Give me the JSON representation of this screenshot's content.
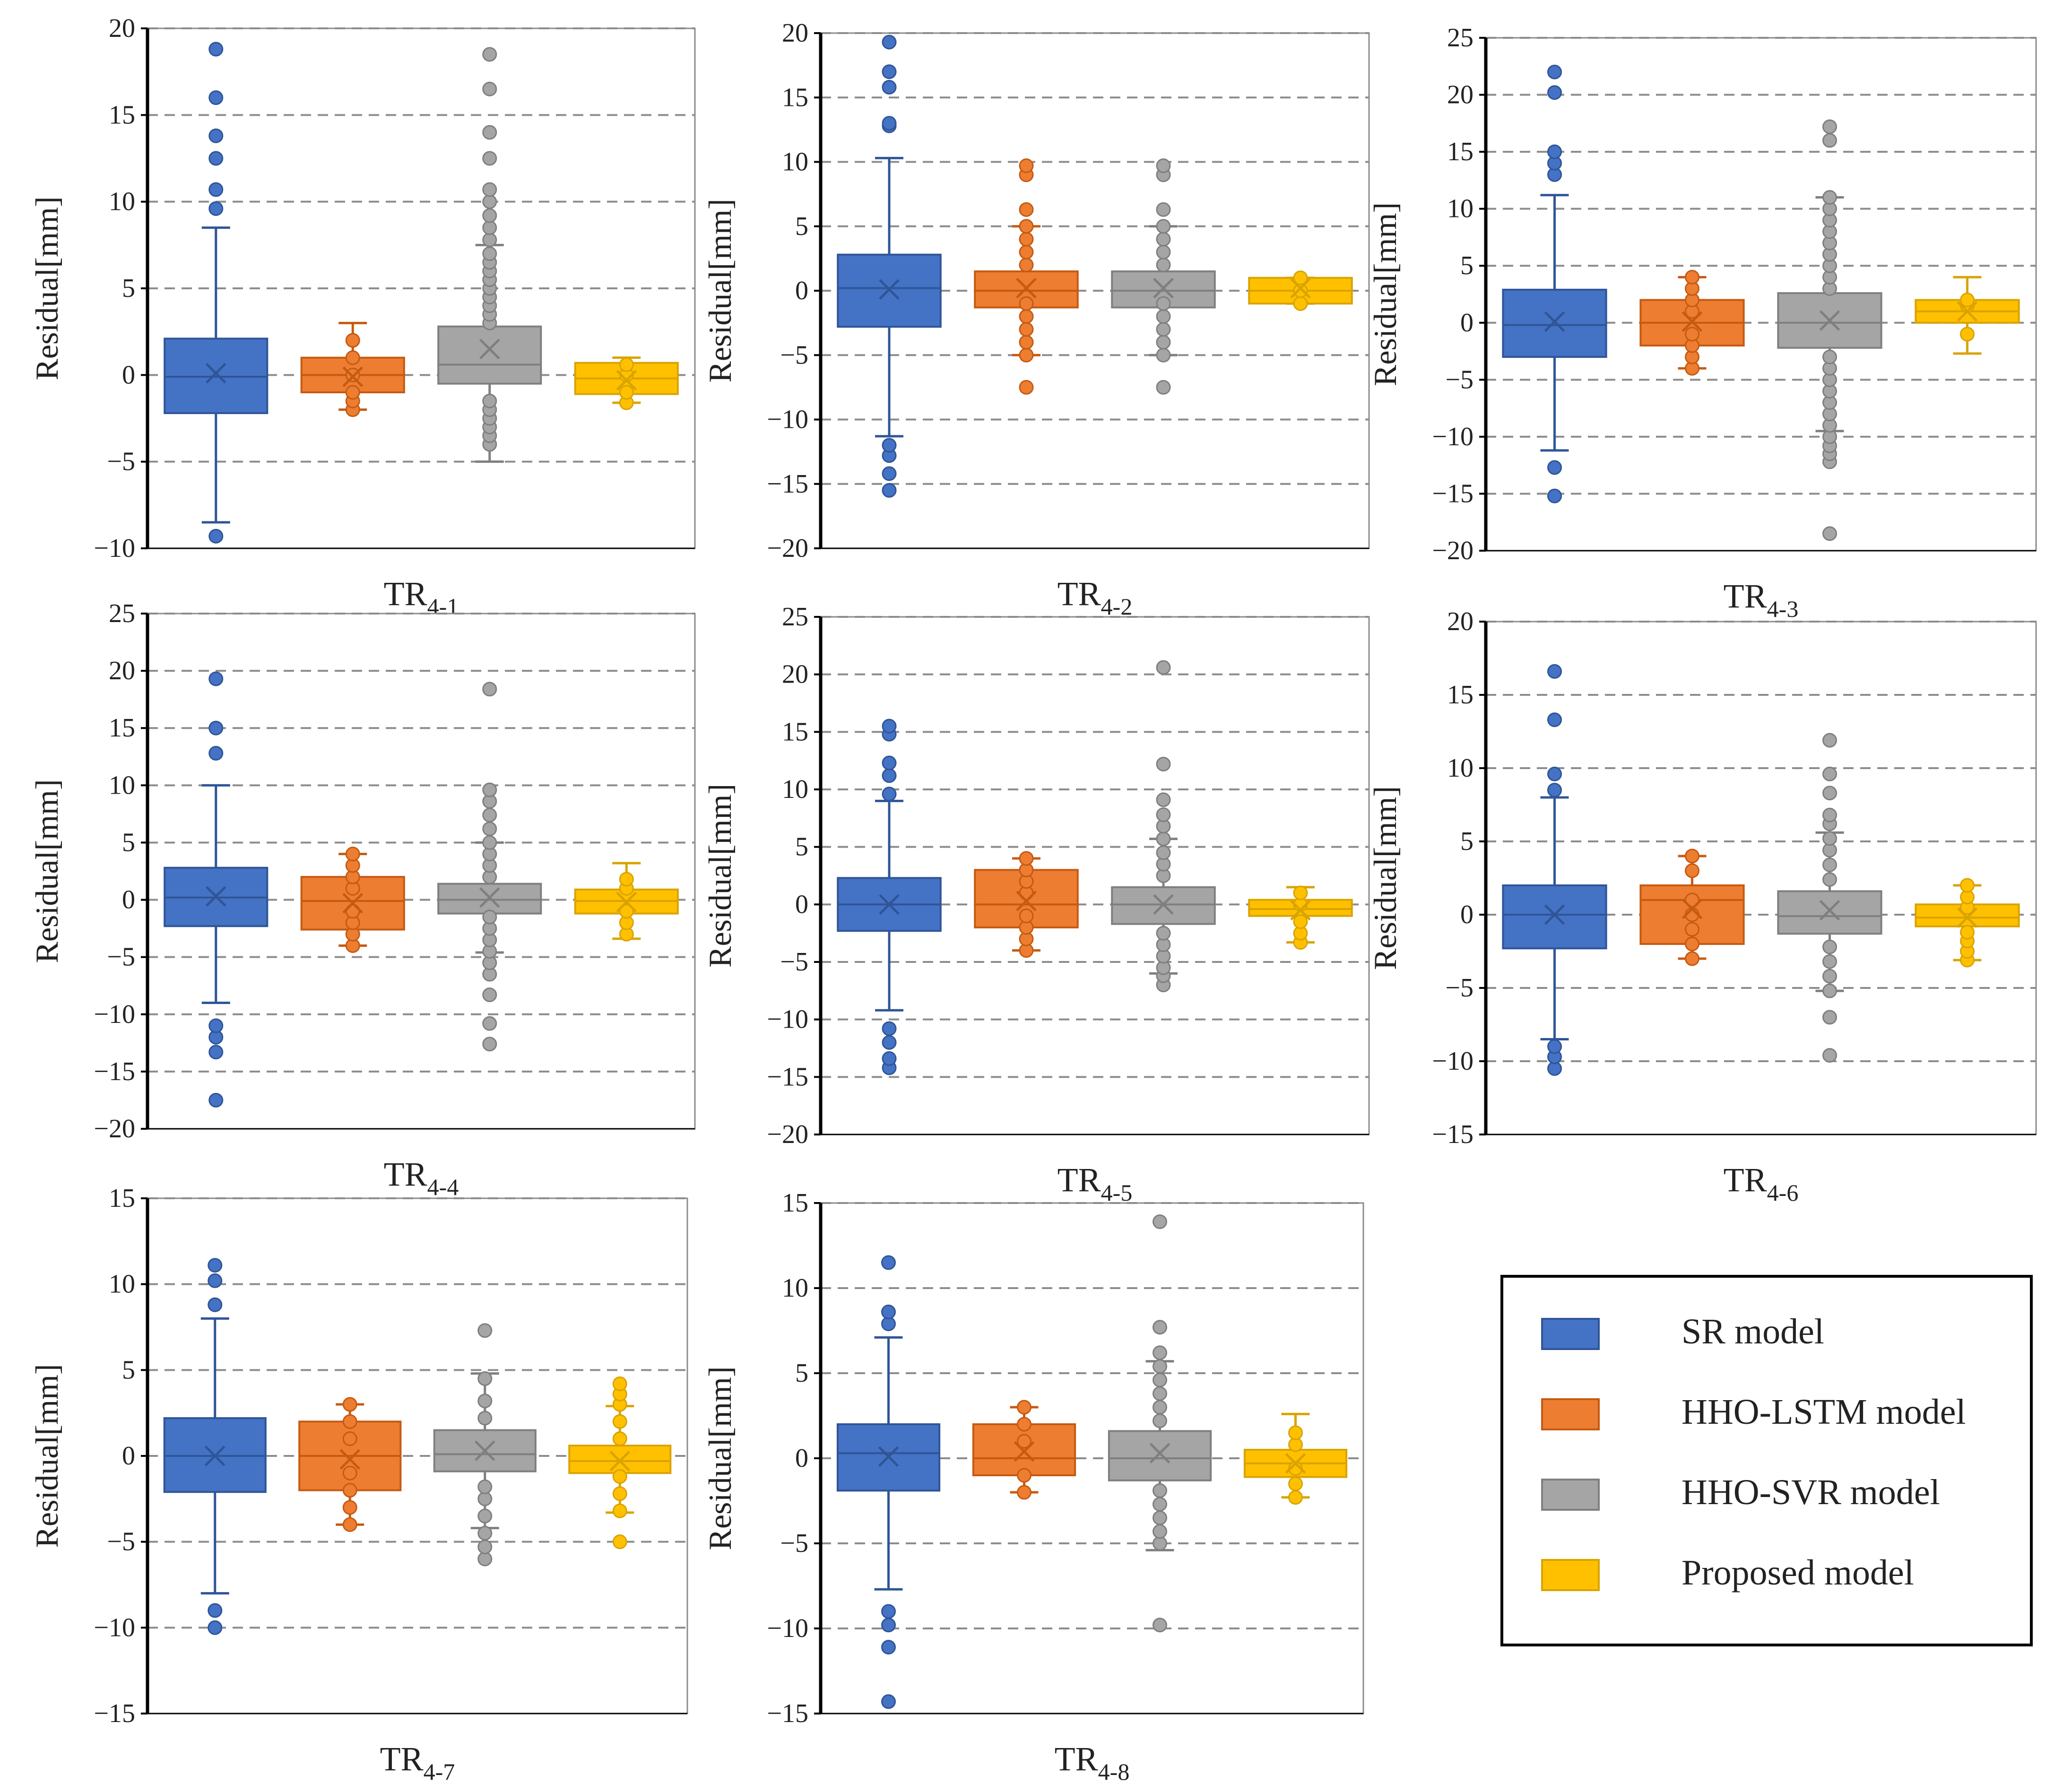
{
  "figure": {
    "series_names": [
      "SR model",
      "HHO-LSTM model",
      "HHO-SVR model",
      "Proposed model"
    ],
    "colors": {
      "SR model": {
        "fill": "#4472C4",
        "line": "#2F5597"
      },
      "HHO-LSTM model": {
        "fill": "#ED7D31",
        "line": "#C55A11"
      },
      "HHO-SVR model": {
        "fill": "#A5A5A5",
        "line": "#7F7F7F"
      },
      "Proposed model": {
        "fill": "#FFC000",
        "line": "#D9A300"
      }
    },
    "legend": {
      "items": [
        "SR model",
        "HHO-LSTM model",
        "HHO-SVR model",
        "Proposed model"
      ]
    }
  },
  "chart_data": [
    {
      "type": "box",
      "title_main": "TR",
      "title_sub": "4-1",
      "ylabel": "Residual[mm]",
      "ylim": [
        -10,
        20
      ],
      "yticks": [
        -10,
        -5,
        0,
        5,
        10,
        15,
        20
      ],
      "boxes": [
        {
          "series": "SR model",
          "q1": -2.2,
          "median": -0.1,
          "q3": 2.1,
          "mean": 0.1,
          "whisker_low": -8.5,
          "whisker_high": 8.5,
          "outliers": [
            -9.3,
            9.6,
            10.7,
            12.5,
            13.8,
            16.0,
            18.8
          ]
        },
        {
          "series": "HHO-LSTM model",
          "q1": -1.0,
          "median": 0.0,
          "q3": 1.0,
          "mean": -0.1,
          "whisker_low": -2.0,
          "whisker_high": 3.0,
          "outliers": [
            -2.0,
            -1.5,
            -1.0,
            0.0,
            1.0,
            2.0
          ]
        },
        {
          "series": "HHO-SVR model",
          "q1": -0.5,
          "median": 0.6,
          "q3": 2.8,
          "mean": 1.5,
          "whisker_low": -5.0,
          "whisker_high": 7.5,
          "outliers": [
            -4.0,
            -3.5,
            -3.0,
            -2.5,
            -2.0,
            -1.5,
            3.0,
            3.5,
            4.0,
            4.5,
            5.0,
            5.5,
            6.0,
            6.5,
            7.0,
            7.8,
            8.5,
            9.2,
            10.0,
            10.7,
            12.5,
            14.0,
            16.5,
            18.5
          ]
        },
        {
          "series": "Proposed model",
          "q1": -1.1,
          "median": -0.2,
          "q3": 0.7,
          "mean": -0.3,
          "whisker_low": -1.6,
          "whisker_high": 1.0,
          "outliers": [
            -1.6,
            -1.0,
            0.0,
            0.6
          ]
        }
      ]
    },
    {
      "type": "box",
      "title_main": "TR",
      "title_sub": "4-2",
      "ylabel": "Residual[mm]",
      "ylim": [
        -20,
        20
      ],
      "yticks": [
        -20,
        -15,
        -10,
        -5,
        0,
        5,
        10,
        15,
        20
      ],
      "boxes": [
        {
          "series": "SR model",
          "q1": -2.8,
          "median": 0.2,
          "q3": 2.8,
          "mean": 0.1,
          "whisker_low": -11.3,
          "whisker_high": 10.3,
          "outliers": [
            -15.5,
            -14.2,
            -12.8,
            -12.0,
            12.8,
            13.0,
            15.8,
            17.0,
            19.3
          ]
        },
        {
          "series": "HHO-LSTM model",
          "q1": -1.3,
          "median": 0.0,
          "q3": 1.5,
          "mean": 0.2,
          "whisker_low": -5.0,
          "whisker_high": 5.0,
          "outliers": [
            -7.5,
            -5.0,
            -4.0,
            -3.0,
            -2.0,
            -1.0,
            2.0,
            3.0,
            4.0,
            5.0,
            6.3,
            9.0,
            9.7
          ]
        },
        {
          "series": "HHO-SVR model",
          "q1": -1.3,
          "median": 0.0,
          "q3": 1.5,
          "mean": 0.2,
          "whisker_low": -5.0,
          "whisker_high": 5.0,
          "outliers": [
            -7.5,
            -5.0,
            -4.0,
            -3.0,
            -2.0,
            -1.0,
            2.0,
            3.0,
            4.0,
            5.0,
            6.3,
            9.0,
            9.7
          ]
        },
        {
          "series": "Proposed model",
          "q1": -1.0,
          "median": 0.0,
          "q3": 1.0,
          "mean": 0.2,
          "whisker_low": -1.0,
          "whisker_high": 1.0,
          "outliers": [
            -1.0,
            0.0,
            1.0
          ]
        }
      ]
    },
    {
      "type": "box",
      "title_main": "TR",
      "title_sub": "4-3",
      "ylabel": "Residual[mm]",
      "ylim": [
        -20,
        25
      ],
      "yticks": [
        -20,
        -15,
        -10,
        -5,
        0,
        5,
        10,
        15,
        20,
        25
      ],
      "boxes": [
        {
          "series": "SR model",
          "q1": -3.0,
          "median": -0.2,
          "q3": 2.9,
          "mean": 0.1,
          "whisker_low": -11.2,
          "whisker_high": 11.2,
          "outliers": [
            -15.2,
            -12.7,
            13.0,
            14.0,
            15.0,
            20.2,
            22.0
          ]
        },
        {
          "series": "HHO-LSTM model",
          "q1": -2.0,
          "median": 0.0,
          "q3": 2.0,
          "mean": 0.1,
          "whisker_low": -4.0,
          "whisker_high": 4.0,
          "outliers": [
            -4.0,
            -3.0,
            -2.0,
            -1.0,
            1.0,
            2.0,
            3.0,
            4.0
          ]
        },
        {
          "series": "HHO-SVR model",
          "q1": -2.2,
          "median": 0.0,
          "q3": 2.6,
          "mean": 0.2,
          "whisker_low": -9.5,
          "whisker_high": 11.0,
          "outliers": [
            -18.5,
            -12.2,
            -11.5,
            -10.8,
            -10.0,
            -9.0,
            -8.0,
            -7.0,
            -6.0,
            -5.0,
            -4.0,
            -3.0,
            3.0,
            4.0,
            5.0,
            6.0,
            7.0,
            8.0,
            9.0,
            10.0,
            11.0,
            16.0,
            17.2
          ]
        },
        {
          "series": "Proposed model",
          "q1": 0.0,
          "median": 1.0,
          "q3": 2.0,
          "mean": 1.0,
          "whisker_low": -2.7,
          "whisker_high": 4.0,
          "outliers": [
            -1.0,
            1.5,
            2.0
          ]
        }
      ]
    },
    {
      "type": "box",
      "title_main": "TR",
      "title_sub": "4-4",
      "ylabel": "Residual[mm]",
      "ylim": [
        -20,
        25
      ],
      "yticks": [
        -20,
        -15,
        -10,
        -5,
        0,
        5,
        10,
        15,
        20,
        25
      ],
      "boxes": [
        {
          "series": "SR model",
          "q1": -2.3,
          "median": 0.2,
          "q3": 2.8,
          "mean": 0.3,
          "whisker_low": -9.0,
          "whisker_high": 10.0,
          "outliers": [
            -17.5,
            -13.3,
            -12.0,
            -11.0,
            12.8,
            15.0,
            19.3
          ]
        },
        {
          "series": "HHO-LSTM model",
          "q1": -2.6,
          "median": -0.1,
          "q3": 2.0,
          "mean": -0.3,
          "whisker_low": -4.0,
          "whisker_high": 4.0,
          "outliers": [
            -4.0,
            -3.0,
            -2.0,
            -1.0,
            1.0,
            2.0,
            3.0,
            4.0
          ]
        },
        {
          "series": "HHO-SVR model",
          "q1": -1.2,
          "median": 0.0,
          "q3": 1.4,
          "mean": 0.2,
          "whisker_low": -4.6,
          "whisker_high": 5.0,
          "outliers": [
            -12.6,
            -10.8,
            -8.3,
            -6.5,
            -5.5,
            -4.5,
            -3.5,
            -2.5,
            -1.5,
            2.0,
            3.0,
            4.0,
            5.0,
            6.2,
            7.4,
            8.6,
            9.6,
            18.4
          ]
        },
        {
          "series": "Proposed model",
          "q1": -1.2,
          "median": -0.1,
          "q3": 0.9,
          "mean": -0.2,
          "whisker_low": -3.4,
          "whisker_high": 3.2,
          "outliers": [
            -3.0,
            -2.0,
            -1.0,
            1.0,
            1.8
          ]
        }
      ]
    },
    {
      "type": "box",
      "title_main": "TR",
      "title_sub": "4-5",
      "ylabel": "Residual[mm]",
      "ylim": [
        -20,
        25
      ],
      "yticks": [
        -20,
        -15,
        -10,
        -5,
        0,
        5,
        10,
        15,
        20,
        25
      ],
      "boxes": [
        {
          "series": "SR model",
          "q1": -2.3,
          "median": 0.0,
          "q3": 2.3,
          "mean": 0.0,
          "whisker_low": -9.2,
          "whisker_high": 9.0,
          "outliers": [
            -14.2,
            -13.4,
            -12.0,
            -10.8,
            9.6,
            11.2,
            12.3,
            14.8,
            15.5
          ]
        },
        {
          "series": "HHO-LSTM model",
          "q1": -2.0,
          "median": 0.0,
          "q3": 3.0,
          "mean": 0.3,
          "whisker_low": -4.0,
          "whisker_high": 4.0,
          "outliers": [
            -4.0,
            -3.0,
            -2.0,
            -1.0,
            1.0,
            2.0,
            3.0,
            4.0
          ]
        },
        {
          "series": "HHO-SVR model",
          "q1": -1.7,
          "median": 0.0,
          "q3": 1.5,
          "mean": 0.0,
          "whisker_low": -6.0,
          "whisker_high": 5.7,
          "outliers": [
            -7.0,
            -6.2,
            -5.5,
            -4.5,
            -3.5,
            -2.5,
            2.5,
            3.5,
            4.5,
            5.7,
            6.8,
            7.8,
            9.1,
            12.2,
            20.6
          ]
        },
        {
          "series": "Proposed model",
          "q1": -1.0,
          "median": -0.4,
          "q3": 0.4,
          "mean": -0.5,
          "whisker_low": -3.3,
          "whisker_high": 1.5,
          "outliers": [
            -3.3,
            -2.5,
            -1.5,
            0.0,
            1.0
          ]
        }
      ]
    },
    {
      "type": "box",
      "title_main": "TR",
      "title_sub": "4-6",
      "ylabel": "Residual[mm]",
      "ylim": [
        -15,
        20
      ],
      "yticks": [
        -15,
        -10,
        -5,
        0,
        5,
        10,
        15,
        20
      ],
      "boxes": [
        {
          "series": "SR model",
          "q1": -2.3,
          "median": 0.0,
          "q3": 2.0,
          "mean": 0.0,
          "whisker_low": -8.5,
          "whisker_high": 8.0,
          "outliers": [
            -10.5,
            -9.7,
            -9.0,
            8.5,
            9.6,
            13.3,
            16.6
          ]
        },
        {
          "series": "HHO-LSTM model",
          "q1": -2.0,
          "median": 1.0,
          "q3": 2.0,
          "mean": 0.4,
          "whisker_low": -3.0,
          "whisker_high": 4.0,
          "outliers": [
            -3.0,
            -2.0,
            -1.0,
            0.0,
            1.0,
            3.0,
            4.0
          ]
        },
        {
          "series": "HHO-SVR model",
          "q1": -1.3,
          "median": -0.1,
          "q3": 1.6,
          "mean": 0.3,
          "whisker_low": -5.2,
          "whisker_high": 5.6,
          "outliers": [
            -9.6,
            -7.0,
            -5.2,
            -4.2,
            -3.2,
            -2.2,
            2.4,
            3.4,
            4.4,
            5.2,
            6.2,
            6.8,
            8.3,
            9.6,
            11.9
          ]
        },
        {
          "series": "Proposed model",
          "q1": -0.8,
          "median": -0.2,
          "q3": 0.7,
          "mean": -0.2,
          "whisker_low": -3.1,
          "whisker_high": 2.0,
          "outliers": [
            -3.1,
            -2.5,
            -1.8,
            -1.2,
            0.5,
            1.2,
            2.0
          ]
        }
      ]
    },
    {
      "type": "box",
      "title_main": "TR",
      "title_sub": "4-7",
      "ylabel": "Residual[mm]",
      "ylim": [
        -15,
        15
      ],
      "yticks": [
        -15,
        -10,
        -5,
        0,
        5,
        10,
        15
      ],
      "boxes": [
        {
          "series": "SR model",
          "q1": -2.1,
          "median": 0.0,
          "q3": 2.2,
          "mean": 0.0,
          "whisker_low": -8.0,
          "whisker_high": 8.0,
          "outliers": [
            -10.0,
            -9.0,
            8.8,
            10.2,
            11.1
          ]
        },
        {
          "series": "HHO-LSTM model",
          "q1": -2.0,
          "median": 0.0,
          "q3": 2.0,
          "mean": -0.2,
          "whisker_low": -4.0,
          "whisker_high": 3.0,
          "outliers": [
            -4.0,
            -3.0,
            -2.0,
            -1.0,
            1.0,
            2.0,
            3.0
          ]
        },
        {
          "series": "HHO-SVR model",
          "q1": -0.9,
          "median": 0.1,
          "q3": 1.5,
          "mean": 0.3,
          "whisker_low": -4.2,
          "whisker_high": 4.8,
          "outliers": [
            -6.0,
            -5.3,
            -4.5,
            -3.5,
            -2.5,
            -1.8,
            2.2,
            3.2,
            4.5,
            7.3
          ]
        },
        {
          "series": "Proposed model",
          "q1": -1.0,
          "median": -0.3,
          "q3": 0.6,
          "mean": -0.3,
          "whisker_low": -3.3,
          "whisker_high": 2.9,
          "outliers": [
            -5.0,
            -3.2,
            -2.2,
            -1.2,
            1.0,
            2.0,
            3.0,
            3.6,
            4.2
          ]
        }
      ]
    },
    {
      "type": "box",
      "title_main": "TR",
      "title_sub": "4-8",
      "ylabel": "Residual[mm]",
      "ylim": [
        -15,
        15
      ],
      "yticks": [
        -15,
        -10,
        -5,
        0,
        5,
        10,
        15
      ],
      "boxes": [
        {
          "series": "SR model",
          "q1": -1.9,
          "median": 0.3,
          "q3": 2.0,
          "mean": 0.1,
          "whisker_low": -7.7,
          "whisker_high": 7.1,
          "outliers": [
            -14.3,
            -11.1,
            -9.8,
            -9.0,
            7.9,
            8.6,
            11.5
          ]
        },
        {
          "series": "HHO-LSTM model",
          "q1": -1.0,
          "median": 0.0,
          "q3": 2.0,
          "mean": 0.4,
          "whisker_low": -2.0,
          "whisker_high": 3.0,
          "outliers": [
            -2.0,
            -1.0,
            1.0,
            2.0,
            3.0
          ]
        },
        {
          "series": "HHO-SVR model",
          "q1": -1.3,
          "median": 0.0,
          "q3": 1.6,
          "mean": 0.3,
          "whisker_low": -5.4,
          "whisker_high": 5.7,
          "outliers": [
            -9.8,
            -5.0,
            -4.3,
            -3.5,
            -2.7,
            -1.9,
            2.2,
            3.0,
            3.8,
            4.6,
            5.4,
            6.2,
            7.7,
            13.9
          ]
        },
        {
          "series": "Proposed model",
          "q1": -1.1,
          "median": -0.3,
          "q3": 0.5,
          "mean": -0.3,
          "whisker_low": -2.3,
          "whisker_high": 2.6,
          "outliers": [
            -2.3,
            -1.5,
            -0.6,
            0.8,
            1.5
          ]
        }
      ]
    }
  ]
}
